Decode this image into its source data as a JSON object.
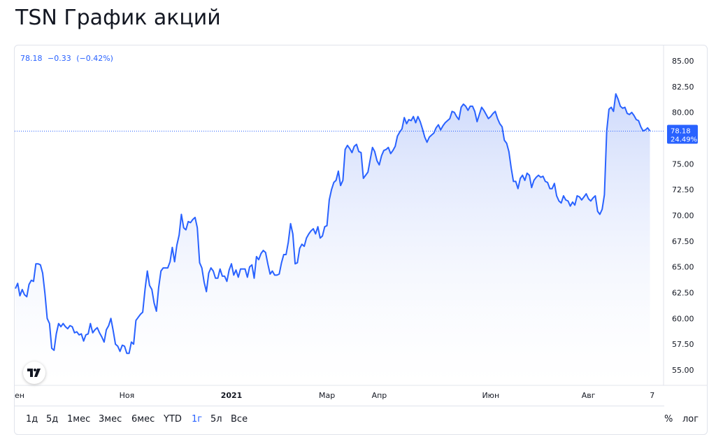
{
  "page": {
    "title": "TSN График акций"
  },
  "legend": {
    "price": "78.18",
    "change": "−0.33",
    "change_pct": "(−0.42%)"
  },
  "price_badge": {
    "price": "78.18",
    "percent": "24.49%"
  },
  "colors": {
    "line": "#2962ff",
    "fill_top": "#c9d6fb",
    "fill_bottom": "#ffffff",
    "badge": "#2962ff"
  },
  "toolbar": {
    "ranges": [
      {
        "label": "1д",
        "active": false
      },
      {
        "label": "5д",
        "active": false
      },
      {
        "label": "1мес",
        "active": false
      },
      {
        "label": "3мес",
        "active": false
      },
      {
        "label": "6мес",
        "active": false
      },
      {
        "label": "YTD",
        "active": false
      },
      {
        "label": "1г",
        "active": true
      },
      {
        "label": "5л",
        "active": false
      },
      {
        "label": "Все",
        "active": false
      }
    ],
    "percent_label": "%",
    "log_label": "лог"
  },
  "chart_data": {
    "type": "area",
    "title": "TSN График акций",
    "ylim": [
      53.5,
      86.5
    ],
    "yticks": [
      "85.00",
      "82.50",
      "80.00",
      "77.50",
      "75.00",
      "72.50",
      "70.00",
      "67.50",
      "65.00",
      "62.50",
      "60.00",
      "57.50",
      "55.00"
    ],
    "xticks": [
      {
        "label": "ен",
        "x": 0,
        "bold": false
      },
      {
        "label": "Ноя",
        "x": 49,
        "bold": false
      },
      {
        "label": "2021",
        "x": 95,
        "bold": true
      },
      {
        "label": "Мар",
        "x": 137,
        "bold": false
      },
      {
        "label": "Апр",
        "x": 160,
        "bold": false
      },
      {
        "label": "Июн",
        "x": 209,
        "bold": false
      },
      {
        "label": "Авг",
        "x": 252,
        "bold": false
      },
      {
        "label": "7",
        "x": 280,
        "bold": false
      }
    ],
    "x_range": [
      0,
      285
    ],
    "last_value": 78.18,
    "grid": false,
    "series": [
      {
        "values": [
          [
            0,
            62.9
          ],
          [
            1,
            63.4
          ],
          [
            2,
            62.2
          ],
          [
            3,
            62.8
          ],
          [
            4,
            62.3
          ],
          [
            5,
            62.1
          ],
          [
            6,
            63.3
          ],
          [
            7,
            63.7
          ],
          [
            8,
            63.6
          ],
          [
            9,
            65.3
          ],
          [
            10,
            65.3
          ],
          [
            11,
            65.2
          ],
          [
            12,
            64.4
          ],
          [
            13,
            62.4
          ],
          [
            14,
            60.0
          ],
          [
            15,
            59.5
          ],
          [
            16,
            57.1
          ],
          [
            17,
            56.9
          ],
          [
            18,
            58.5
          ],
          [
            19,
            59.5
          ],
          [
            20,
            59.2
          ],
          [
            21,
            59.5
          ],
          [
            22,
            59.2
          ],
          [
            23,
            59.0
          ],
          [
            24,
            59.3
          ],
          [
            25,
            59.2
          ],
          [
            26,
            58.6
          ],
          [
            27,
            58.7
          ],
          [
            28,
            58.4
          ],
          [
            29,
            58.5
          ],
          [
            30,
            57.8
          ],
          [
            31,
            58.4
          ],
          [
            32,
            58.5
          ],
          [
            33,
            59.5
          ],
          [
            34,
            58.6
          ],
          [
            35,
            58.9
          ],
          [
            36,
            59.1
          ],
          [
            37,
            58.6
          ],
          [
            38,
            58.2
          ],
          [
            39,
            57.7
          ],
          [
            40,
            58.9
          ],
          [
            41,
            59.3
          ],
          [
            42,
            60.0
          ],
          [
            43,
            58.8
          ],
          [
            44,
            57.5
          ],
          [
            45,
            57.3
          ],
          [
            46,
            56.8
          ],
          [
            47,
            57.4
          ],
          [
            48,
            57.3
          ],
          [
            49,
            56.6
          ],
          [
            50,
            56.6
          ],
          [
            51,
            57.7
          ],
          [
            52,
            57.5
          ],
          [
            53,
            59.8
          ],
          [
            54,
            60.1
          ],
          [
            55,
            60.4
          ],
          [
            56,
            60.6
          ],
          [
            57,
            62.8
          ],
          [
            58,
            64.6
          ],
          [
            59,
            63.2
          ],
          [
            60,
            62.8
          ],
          [
            61,
            61.5
          ],
          [
            62,
            60.7
          ],
          [
            63,
            63.0
          ],
          [
            64,
            64.6
          ],
          [
            65,
            64.9
          ],
          [
            66,
            64.9
          ],
          [
            67,
            64.9
          ],
          [
            68,
            65.5
          ],
          [
            69,
            66.9
          ],
          [
            70,
            65.5
          ],
          [
            71,
            67.1
          ],
          [
            72,
            68.1
          ],
          [
            73,
            70.1
          ],
          [
            74,
            68.8
          ],
          [
            75,
            68.6
          ],
          [
            76,
            69.4
          ],
          [
            77,
            69.3
          ],
          [
            78,
            69.6
          ],
          [
            79,
            69.8
          ],
          [
            80,
            68.8
          ],
          [
            81,
            65.4
          ],
          [
            82,
            64.9
          ],
          [
            83,
            63.5
          ],
          [
            84,
            62.6
          ],
          [
            85,
            64.4
          ],
          [
            86,
            64.9
          ],
          [
            87,
            64.6
          ],
          [
            88,
            63.9
          ],
          [
            89,
            63.9
          ],
          [
            90,
            64.8
          ],
          [
            91,
            64.1
          ],
          [
            92,
            64.1
          ],
          [
            93,
            63.6
          ],
          [
            94,
            64.7
          ],
          [
            95,
            65.3
          ],
          [
            96,
            64.2
          ],
          [
            97,
            64.7
          ],
          [
            98,
            64.0
          ],
          [
            99,
            64.8
          ],
          [
            100,
            64.8
          ],
          [
            101,
            64.8
          ],
          [
            102,
            64.0
          ],
          [
            103,
            65.0
          ],
          [
            104,
            65.2
          ],
          [
            105,
            63.9
          ],
          [
            106,
            66.0
          ],
          [
            107,
            65.7
          ],
          [
            108,
            66.3
          ],
          [
            109,
            66.6
          ],
          [
            110,
            66.4
          ],
          [
            111,
            65.3
          ],
          [
            112,
            64.3
          ],
          [
            113,
            64.6
          ],
          [
            114,
            64.2
          ],
          [
            115,
            64.2
          ],
          [
            116,
            64.3
          ],
          [
            117,
            65.4
          ],
          [
            118,
            66.2
          ],
          [
            119,
            66.2
          ],
          [
            120,
            67.4
          ],
          [
            121,
            69.2
          ],
          [
            122,
            68.2
          ],
          [
            123,
            65.3
          ],
          [
            124,
            65.4
          ],
          [
            125,
            66.8
          ],
          [
            126,
            67.2
          ],
          [
            127,
            67.0
          ],
          [
            128,
            67.8
          ],
          [
            129,
            68.2
          ],
          [
            130,
            68.5
          ],
          [
            131,
            68.7
          ],
          [
            132,
            68.2
          ],
          [
            133,
            68.9
          ],
          [
            134,
            67.8
          ],
          [
            135,
            68.0
          ],
          [
            136,
            68.9
          ],
          [
            137,
            69.0
          ],
          [
            138,
            71.5
          ],
          [
            139,
            72.5
          ],
          [
            140,
            73.2
          ],
          [
            141,
            73.4
          ],
          [
            142,
            74.3
          ],
          [
            143,
            72.9
          ],
          [
            144,
            73.4
          ],
          [
            145,
            76.4
          ],
          [
            146,
            76.8
          ],
          [
            147,
            76.5
          ],
          [
            148,
            76.1
          ],
          [
            149,
            76.7
          ],
          [
            150,
            76.9
          ],
          [
            151,
            76.2
          ],
          [
            152,
            76.1
          ],
          [
            153,
            73.6
          ],
          [
            154,
            73.9
          ],
          [
            155,
            74.2
          ],
          [
            156,
            75.4
          ],
          [
            157,
            76.6
          ],
          [
            158,
            76.2
          ],
          [
            159,
            75.3
          ],
          [
            160,
            74.9
          ],
          [
            161,
            75.8
          ],
          [
            162,
            76.3
          ],
          [
            163,
            76.4
          ],
          [
            164,
            76.6
          ],
          [
            165,
            76.0
          ],
          [
            166,
            76.3
          ],
          [
            167,
            76.7
          ],
          [
            168,
            77.7
          ],
          [
            169,
            78.1
          ],
          [
            170,
            78.4
          ],
          [
            171,
            79.5
          ],
          [
            172,
            78.9
          ],
          [
            173,
            79.3
          ],
          [
            174,
            79.2
          ],
          [
            175,
            79.6
          ],
          [
            176,
            79.0
          ],
          [
            177,
            79.6
          ],
          [
            178,
            79.1
          ],
          [
            179,
            78.4
          ],
          [
            180,
            77.6
          ],
          [
            181,
            77.1
          ],
          [
            182,
            77.6
          ],
          [
            183,
            77.8
          ],
          [
            184,
            78.0
          ],
          [
            185,
            78.5
          ],
          [
            186,
            78.8
          ],
          [
            187,
            78.3
          ],
          [
            188,
            78.7
          ],
          [
            189,
            79.0
          ],
          [
            190,
            79.2
          ],
          [
            191,
            79.4
          ],
          [
            192,
            80.1
          ],
          [
            193,
            80.0
          ],
          [
            194,
            79.6
          ],
          [
            195,
            79.3
          ],
          [
            196,
            80.5
          ],
          [
            197,
            80.8
          ],
          [
            198,
            80.6
          ],
          [
            199,
            80.2
          ],
          [
            200,
            80.6
          ],
          [
            201,
            80.6
          ],
          [
            202,
            80.1
          ],
          [
            203,
            79.1
          ],
          [
            204,
            79.8
          ],
          [
            205,
            80.5
          ],
          [
            206,
            80.2
          ],
          [
            207,
            79.8
          ],
          [
            208,
            79.4
          ],
          [
            209,
            79.6
          ],
          [
            210,
            79.9
          ],
          [
            211,
            80.1
          ],
          [
            212,
            79.4
          ],
          [
            213,
            78.9
          ],
          [
            214,
            78.6
          ],
          [
            215,
            77.3
          ],
          [
            216,
            77.0
          ],
          [
            217,
            76.2
          ],
          [
            218,
            74.6
          ],
          [
            219,
            73.3
          ],
          [
            220,
            73.3
          ],
          [
            221,
            72.6
          ],
          [
            222,
            73.6
          ],
          [
            223,
            73.9
          ],
          [
            224,
            73.4
          ],
          [
            225,
            74.1
          ],
          [
            226,
            73.9
          ],
          [
            227,
            72.7
          ],
          [
            228,
            73.4
          ],
          [
            229,
            73.7
          ],
          [
            230,
            73.9
          ],
          [
            231,
            73.7
          ],
          [
            232,
            73.8
          ],
          [
            233,
            73.3
          ],
          [
            234,
            73.2
          ],
          [
            235,
            72.6
          ],
          [
            236,
            72.6
          ],
          [
            237,
            73.1
          ],
          [
            238,
            71.9
          ],
          [
            239,
            71.4
          ],
          [
            240,
            71.2
          ],
          [
            241,
            71.9
          ],
          [
            242,
            71.5
          ],
          [
            243,
            71.4
          ],
          [
            244,
            70.9
          ],
          [
            245,
            71.3
          ],
          [
            246,
            71.0
          ],
          [
            247,
            71.9
          ],
          [
            248,
            71.8
          ],
          [
            249,
            71.5
          ],
          [
            250,
            71.8
          ],
          [
            251,
            72.1
          ],
          [
            252,
            71.6
          ],
          [
            253,
            71.4
          ],
          [
            254,
            71.7
          ],
          [
            255,
            71.9
          ],
          [
            256,
            70.4
          ],
          [
            257,
            70.1
          ],
          [
            258,
            70.6
          ],
          [
            259,
            72.0
          ],
          [
            260,
            78.2
          ],
          [
            261,
            80.3
          ],
          [
            262,
            80.5
          ],
          [
            263,
            80.1
          ],
          [
            264,
            81.8
          ],
          [
            265,
            81.3
          ],
          [
            266,
            80.6
          ],
          [
            267,
            80.4
          ],
          [
            268,
            80.5
          ],
          [
            269,
            79.9
          ],
          [
            270,
            79.8
          ],
          [
            271,
            80.0
          ],
          [
            272,
            79.7
          ],
          [
            273,
            79.3
          ],
          [
            274,
            79.2
          ],
          [
            275,
            78.6
          ],
          [
            276,
            78.2
          ],
          [
            277,
            78.3
          ],
          [
            278,
            78.5
          ],
          [
            279,
            78.2
          ]
        ]
      }
    ]
  }
}
